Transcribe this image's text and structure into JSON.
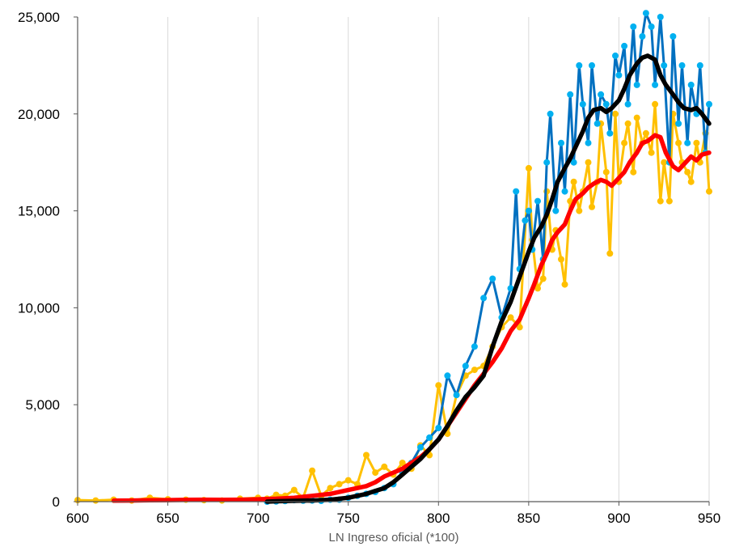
{
  "chart_data": {
    "type": "line",
    "title": "",
    "xlabel": "LN Ingreso oficial (*100)",
    "ylabel": "",
    "xlim": [
      600,
      950
    ],
    "ylim": [
      0,
      25000
    ],
    "x_ticks": [
      600,
      650,
      700,
      750,
      800,
      850,
      900,
      950
    ],
    "y_ticks": [
      0,
      5000,
      10000,
      15000,
      20000,
      25000
    ],
    "x_tick_labels": [
      "600",
      "650",
      "700",
      "750",
      "800",
      "850",
      "900",
      "950"
    ],
    "y_tick_labels": [
      "0",
      "5,000",
      "10,000",
      "15,000",
      "20,000",
      "25,000"
    ],
    "grid": {
      "vertical": true,
      "horizontal": false
    },
    "legend": "none",
    "series": [
      {
        "style": "noisy-markers",
        "color": "#FFC000",
        "x": [
          600,
          610,
          620,
          630,
          640,
          650,
          660,
          670,
          680,
          690,
          700,
          705,
          710,
          715,
          720,
          725,
          730,
          735,
          740,
          745,
          750,
          755,
          760,
          765,
          770,
          775,
          780,
          785,
          790,
          795,
          800,
          805,
          810,
          815,
          820,
          825,
          830,
          835,
          840,
          845,
          850,
          852,
          855,
          858,
          860,
          863,
          865,
          868,
          870,
          873,
          875,
          878,
          880,
          883,
          885,
          888,
          890,
          893,
          895,
          898,
          900,
          903,
          905,
          908,
          910,
          913,
          915,
          918,
          920,
          923,
          925,
          928,
          930,
          933,
          935,
          938,
          940,
          943,
          945,
          948,
          950
        ],
        "y": [
          80,
          60,
          100,
          60,
          200,
          120,
          100,
          80,
          60,
          150,
          200,
          150,
          350,
          300,
          600,
          200,
          1600,
          300,
          700,
          900,
          1100,
          900,
          2400,
          1500,
          1800,
          1400,
          2000,
          1700,
          2900,
          2400,
          6000,
          3500,
          5500,
          6500,
          6800,
          7000,
          8000,
          9000,
          9500,
          9000,
          17200,
          13500,
          11000,
          11500,
          16000,
          13000,
          14000,
          12500,
          11200,
          15500,
          16500,
          15000,
          16000,
          17500,
          15200,
          16500,
          19500,
          17000,
          12800,
          20000,
          16500,
          18500,
          19500,
          17000,
          19800,
          18500,
          19000,
          18000,
          20500,
          15500,
          17500,
          15500,
          20000,
          18500,
          17500,
          17000,
          16500,
          18500,
          17500,
          19000,
          16000
        ]
      },
      {
        "style": "noisy-markers",
        "color": "#00B0F0",
        "line_color": "#0070C0",
        "x": [
          705,
          710,
          715,
          720,
          725,
          730,
          735,
          740,
          745,
          750,
          755,
          760,
          765,
          770,
          775,
          780,
          785,
          790,
          795,
          800,
          805,
          810,
          815,
          820,
          825,
          830,
          835,
          840,
          843,
          845,
          848,
          850,
          852,
          855,
          858,
          860,
          862,
          865,
          868,
          870,
          873,
          875,
          878,
          880,
          883,
          885,
          888,
          890,
          893,
          895,
          898,
          900,
          903,
          905,
          908,
          910,
          913,
          915,
          918,
          920,
          923,
          925,
          928,
          930,
          933,
          935,
          938,
          940,
          943,
          945,
          948,
          950
        ],
        "y": [
          0,
          10,
          30,
          80,
          50,
          60,
          40,
          100,
          100,
          200,
          300,
          400,
          500,
          700,
          900,
          1500,
          2000,
          2800,
          3300,
          3800,
          6500,
          5500,
          7000,
          8000,
          10500,
          11500,
          9500,
          11000,
          16000,
          12000,
          14500,
          15000,
          13000,
          15500,
          12500,
          17500,
          20000,
          15000,
          18500,
          16000,
          21000,
          17500,
          22500,
          20500,
          18500,
          22500,
          19500,
          21000,
          20500,
          19000,
          23000,
          22000,
          23500,
          20500,
          24500,
          21500,
          24000,
          25200,
          24500,
          21500,
          25000,
          22500,
          17500,
          24000,
          19500,
          22500,
          18500,
          21500,
          20000,
          22500,
          18000,
          20500
        ]
      },
      {
        "style": "smooth",
        "color": "#FF0000",
        "x": [
          620,
          630,
          640,
          650,
          660,
          670,
          680,
          690,
          700,
          710,
          720,
          730,
          740,
          750,
          755,
          760,
          765,
          770,
          775,
          780,
          785,
          790,
          795,
          800,
          805,
          810,
          815,
          820,
          825,
          830,
          835,
          840,
          845,
          850,
          853,
          857,
          860,
          863,
          866,
          870,
          873,
          876,
          880,
          883,
          886,
          890,
          893,
          896,
          900,
          903,
          906,
          910,
          913,
          916,
          920,
          923,
          926,
          930,
          933,
          936,
          940,
          943,
          946,
          950
        ],
        "y": [
          50,
          60,
          70,
          80,
          90,
          100,
          90,
          100,
          120,
          150,
          200,
          300,
          400,
          600,
          700,
          800,
          1000,
          1300,
          1500,
          1700,
          2000,
          2300,
          2700,
          3200,
          3900,
          4600,
          5300,
          6000,
          6600,
          7200,
          7900,
          8800,
          9400,
          10500,
          11200,
          12200,
          12800,
          13500,
          13900,
          14300,
          15000,
          15600,
          15900,
          16200,
          16400,
          16600,
          16500,
          16300,
          16700,
          17000,
          17500,
          18000,
          18500,
          18600,
          18900,
          18800,
          18000,
          17300,
          17100,
          17400,
          17800,
          17600,
          17900,
          18000
        ]
      },
      {
        "style": "smooth",
        "color": "#000000",
        "x": [
          705,
          710,
          720,
          730,
          740,
          750,
          755,
          760,
          765,
          770,
          775,
          780,
          785,
          790,
          795,
          800,
          805,
          810,
          815,
          820,
          825,
          830,
          835,
          840,
          845,
          850,
          853,
          857,
          860,
          863,
          866,
          870,
          873,
          876,
          880,
          883,
          886,
          890,
          893,
          896,
          900,
          903,
          906,
          910,
          913,
          916,
          920,
          923,
          926,
          930,
          933,
          936,
          940,
          943,
          946,
          950
        ],
        "y": [
          0,
          20,
          40,
          60,
          100,
          200,
          300,
          400,
          550,
          700,
          1000,
          1400,
          1800,
          2200,
          2700,
          3200,
          3900,
          4700,
          5400,
          5900,
          6500,
          8000,
          9300,
          10300,
          11600,
          12900,
          13600,
          14200,
          14800,
          15600,
          16500,
          17200,
          17700,
          18300,
          19100,
          19800,
          20200,
          20300,
          20100,
          20300,
          20700,
          21300,
          22000,
          22600,
          22900,
          23000,
          22800,
          22000,
          21500,
          21000,
          20600,
          20300,
          20200,
          20300,
          20000,
          19500
        ]
      }
    ]
  }
}
